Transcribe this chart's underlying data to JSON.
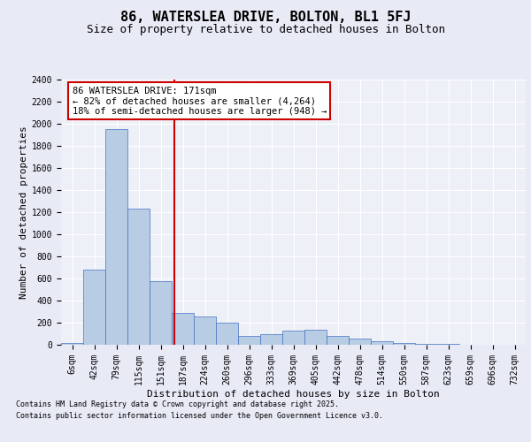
{
  "title": "86, WATERSLEA DRIVE, BOLTON, BL1 5FJ",
  "subtitle": "Size of property relative to detached houses in Bolton",
  "xlabel": "Distribution of detached houses by size in Bolton",
  "ylabel": "Number of detached properties",
  "bar_labels": [
    "6sqm",
    "42sqm",
    "79sqm",
    "115sqm",
    "151sqm",
    "187sqm",
    "224sqm",
    "260sqm",
    "296sqm",
    "333sqm",
    "369sqm",
    "405sqm",
    "442sqm",
    "478sqm",
    "514sqm",
    "550sqm",
    "587sqm",
    "623sqm",
    "659sqm",
    "696sqm",
    "732sqm"
  ],
  "bar_values": [
    20,
    680,
    1950,
    1230,
    580,
    290,
    260,
    200,
    80,
    100,
    130,
    140,
    80,
    60,
    30,
    15,
    8,
    5,
    3,
    2,
    1
  ],
  "bar_color": "#b8cce4",
  "bar_edge_color": "#4472c4",
  "vline_x_index": 4.6,
  "vline_color": "#cc0000",
  "annotation_text": "86 WATERSLEA DRIVE: 171sqm\n← 82% of detached houses are smaller (4,264)\n18% of semi-detached houses are larger (948) →",
  "annotation_box_color": "#ffffff",
  "annotation_box_edge": "#cc0000",
  "ylim": [
    0,
    2400
  ],
  "yticks": [
    0,
    200,
    400,
    600,
    800,
    1000,
    1200,
    1400,
    1600,
    1800,
    2000,
    2200,
    2400
  ],
  "bg_color": "#e8eaf6",
  "plot_bg_color": "#eef0f8",
  "footer1": "Contains HM Land Registry data © Crown copyright and database right 2025.",
  "footer2": "Contains public sector information licensed under the Open Government Licence v3.0.",
  "title_fontsize": 11,
  "subtitle_fontsize": 9,
  "tick_fontsize": 7,
  "label_fontsize": 8,
  "annotation_fontsize": 7.5,
  "footer_fontsize": 6
}
